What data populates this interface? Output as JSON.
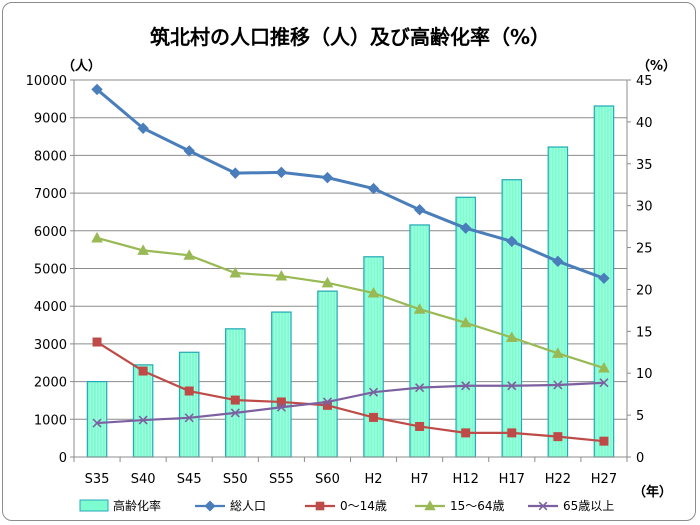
{
  "chart_data": {
    "type": "bar",
    "title": "筑北村の人口推移（人）及び高齢化率（%）",
    "ylabel_left": "（人）",
    "ylabel_right": "（%）",
    "xlabel": "（年）",
    "categories": [
      "S35",
      "S40",
      "S45",
      "S50",
      "S55",
      "S60",
      "H2",
      "H7",
      "H12",
      "H17",
      "H22",
      "H27"
    ],
    "ylim_left": [
      0,
      10000
    ],
    "ylim_right": [
      0,
      45
    ],
    "left_ticks": [
      0,
      1000,
      2000,
      3000,
      4000,
      5000,
      6000,
      7000,
      8000,
      9000,
      10000
    ],
    "right_ticks": [
      0,
      5,
      10,
      15,
      20,
      25,
      30,
      35,
      40,
      45
    ],
    "grid": true,
    "legend_position": "bottom",
    "series": [
      {
        "name": "高齢化率",
        "kind": "bar",
        "axis": "right",
        "color": "#7dfcd0",
        "values": [
          9.0,
          11.0,
          12.5,
          15.3,
          17.3,
          19.8,
          23.9,
          27.7,
          31.0,
          33.1,
          37.0,
          41.9
        ]
      },
      {
        "name": "総人口",
        "kind": "line",
        "axis": "left",
        "color": "#4a7ebb",
        "marker": "diamond",
        "values": [
          9750,
          8720,
          8120,
          7530,
          7550,
          7410,
          7120,
          6560,
          6070,
          5720,
          5190,
          4740
        ]
      },
      {
        "name": "0～14歳",
        "kind": "line",
        "axis": "left",
        "color": "#be4b48",
        "marker": "square",
        "values": [
          3050,
          2280,
          1750,
          1510,
          1460,
          1370,
          1050,
          810,
          640,
          640,
          540,
          420
        ]
      },
      {
        "name": "15～64歳",
        "kind": "line",
        "axis": "left",
        "color": "#98b954",
        "marker": "triangle",
        "values": [
          5810,
          5480,
          5350,
          4880,
          4800,
          4620,
          4350,
          3920,
          3560,
          3170,
          2750,
          2360
        ]
      },
      {
        "name": "65歳以上",
        "kind": "line",
        "axis": "left",
        "color": "#7d60a0",
        "marker": "x",
        "values": [
          900,
          980,
          1040,
          1170,
          1320,
          1460,
          1720,
          1840,
          1890,
          1890,
          1910,
          1970
        ]
      }
    ]
  }
}
